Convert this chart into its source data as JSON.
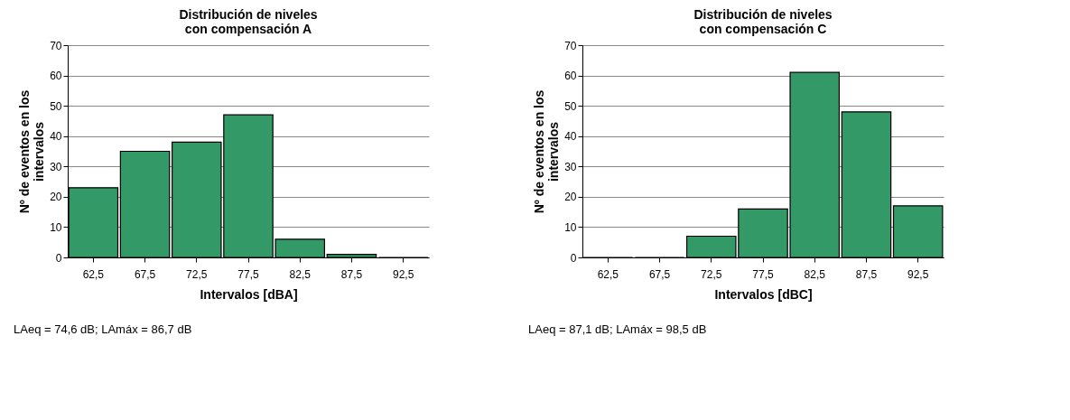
{
  "chart_data": [
    {
      "type": "bar",
      "title": "Distribución de niveles\ncon compensación A",
      "xlabel": "Intervalos [dBA]",
      "ylabel": "Nº de eventos en los\nintervalos",
      "categories": [
        "62,5",
        "67,5",
        "72,5",
        "77,5",
        "82,5",
        "87,5",
        "92,5"
      ],
      "values": [
        23,
        35,
        38,
        47,
        6,
        1,
        0
      ],
      "color": "#339966",
      "ylim": [
        0,
        70
      ],
      "yticks": [
        0,
        10,
        20,
        30,
        40,
        50,
        60,
        70
      ],
      "grid": "y",
      "annotations": [
        "LAeq = 74,6 dB; LAmáx = 86,7 dB"
      ]
    },
    {
      "type": "bar",
      "title": "Distribución de niveles\ncon compensación C",
      "xlabel": "Intervalos [dBC]",
      "ylabel": "Nº de eventos en los\nintervalos",
      "categories": [
        "62,5",
        "67,5",
        "72,5",
        "77,5",
        "82,5",
        "87,5",
        "92,5"
      ],
      "values": [
        0,
        0,
        7,
        16,
        61,
        48,
        17
      ],
      "color": "#339966",
      "ylim": [
        0,
        70
      ],
      "yticks": [
        0,
        10,
        20,
        30,
        40,
        50,
        60,
        70
      ],
      "grid": "y",
      "annotations": [
        "LAeq = 87,1 dB; LAmáx = 98,5 dB"
      ]
    }
  ]
}
